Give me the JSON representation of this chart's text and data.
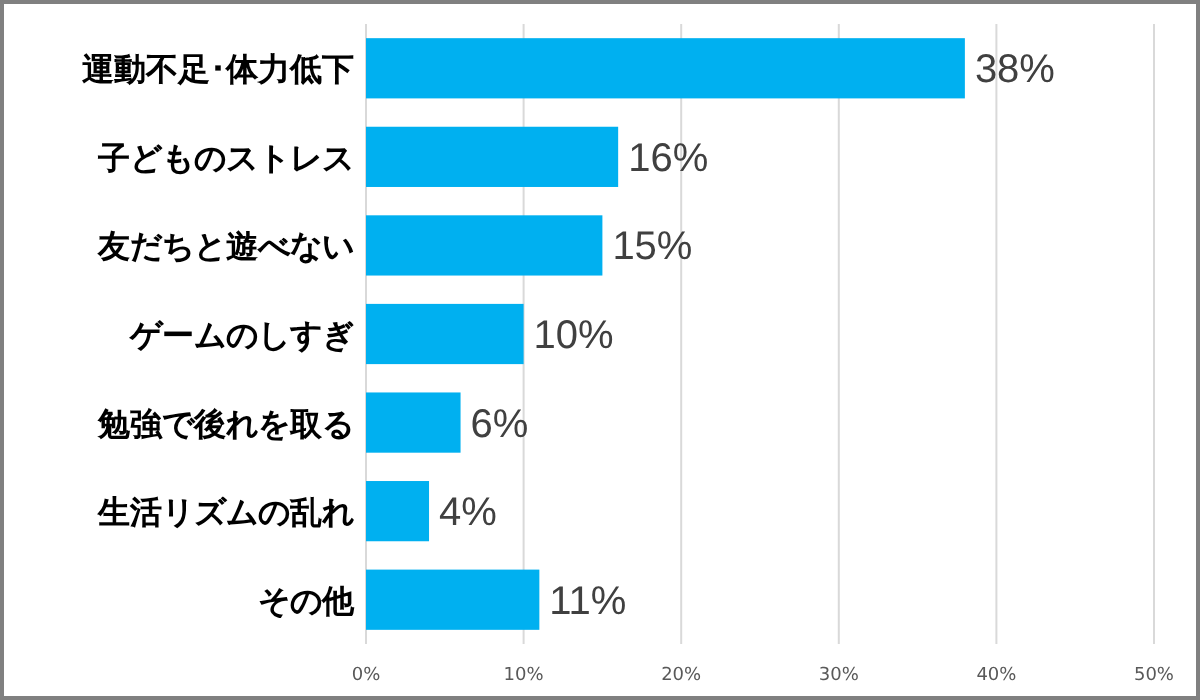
{
  "chart_data": {
    "type": "bar",
    "orientation": "horizontal",
    "categories": [
      "運動不足･体力低下",
      "子どものストレス",
      "友だちと遊べない",
      "ゲームのしすぎ",
      "勉強で後れを取る",
      "生活リズムの乱れ",
      "その他"
    ],
    "values": [
      38,
      16,
      15,
      10,
      6,
      4,
      11
    ],
    "value_labels": [
      "38%",
      "16%",
      "15%",
      "10%",
      "6%",
      "4%",
      "11%"
    ],
    "color": "#00b0f0",
    "xlim": [
      0,
      50
    ],
    "xticks": [
      {
        "value": 0,
        "label": "0%"
      },
      {
        "value": 10,
        "label": "10%"
      },
      {
        "value": 20,
        "label": "20%"
      },
      {
        "value": 30,
        "label": "30%"
      },
      {
        "value": 40,
        "label": "40%"
      },
      {
        "value": 50,
        "label": "50%"
      }
    ],
    "grid": "x"
  }
}
